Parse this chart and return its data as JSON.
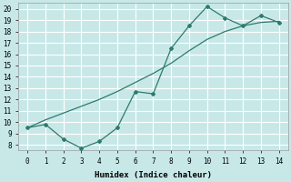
{
  "xlabel": "Humidex (Indice chaleur)",
  "background_color": "#c8e8e8",
  "grid_color": "#ffffff",
  "line_color": "#2e7b6e",
  "xlim": [
    -0.5,
    14.5
  ],
  "ylim": [
    7.5,
    20.5
  ],
  "xticks": [
    0,
    1,
    2,
    3,
    4,
    5,
    6,
    7,
    8,
    9,
    10,
    11,
    12,
    13,
    14
  ],
  "yticks": [
    8,
    9,
    10,
    11,
    12,
    13,
    14,
    15,
    16,
    17,
    18,
    19,
    20
  ],
  "line1_x": [
    0,
    1,
    2,
    3,
    4,
    5,
    6,
    7,
    8,
    9,
    10,
    11,
    12,
    13,
    14
  ],
  "line1_y": [
    9.5,
    9.8,
    8.5,
    7.7,
    8.3,
    9.5,
    12.7,
    12.5,
    16.5,
    18.5,
    20.2,
    19.2,
    18.5,
    19.4,
    18.8
  ],
  "line2_x": [
    0,
    1,
    2,
    3,
    4,
    5,
    6,
    7,
    8,
    9,
    10,
    11,
    12,
    13,
    14
  ],
  "line2_y": [
    9.5,
    10.2,
    10.8,
    11.4,
    12.0,
    12.7,
    13.5,
    14.3,
    15.2,
    16.3,
    17.3,
    18.0,
    18.5,
    18.8,
    18.9
  ],
  "tick_fontsize": 5.5,
  "xlabel_fontsize": 6.5
}
